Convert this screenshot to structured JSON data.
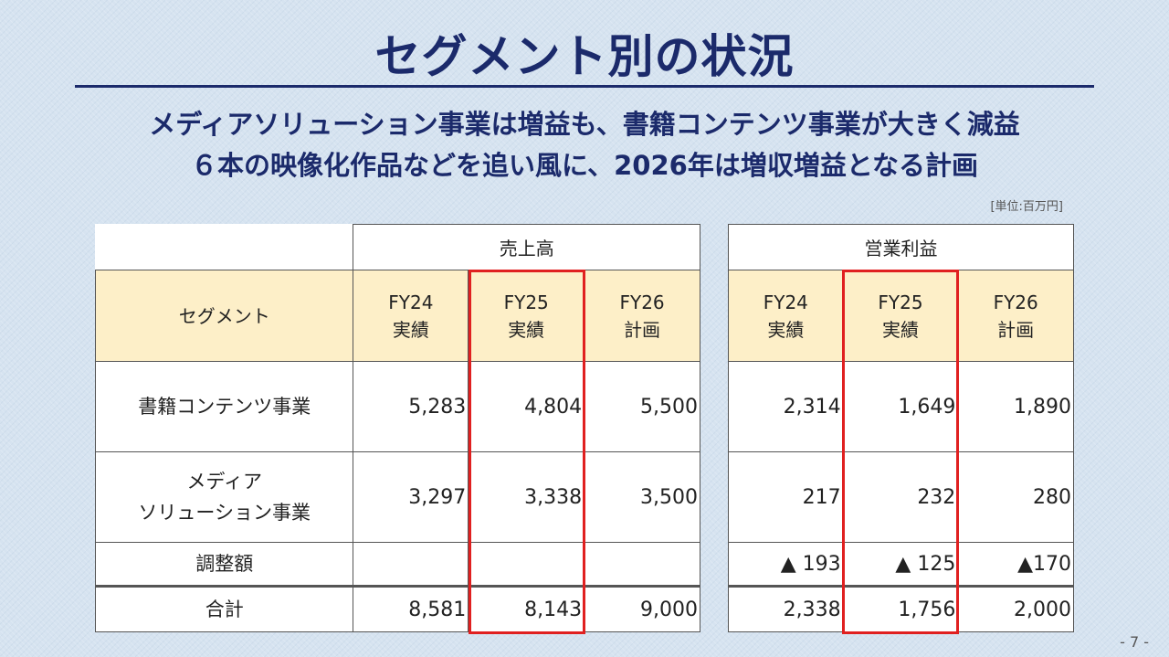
{
  "title": "セグメント別の状況",
  "subtitles": [
    "メディアソリューション事業は増益も、書籍コンテンツ事業が大きく減益",
    "６本の映像化作品などを追い風に、2026年は増収増益となる計画"
  ],
  "unit_note": "[単位:百万円]",
  "table": {
    "segment_header": "セグメント",
    "sales_header": "売上高",
    "profit_header": "営業利益",
    "periods": [
      {
        "line1": "FY24",
        "line2": "実績"
      },
      {
        "line1": "FY25",
        "line2": "実績"
      },
      {
        "line1": "FY26",
        "line2": "計画"
      }
    ],
    "rows": [
      {
        "segment_lines": [
          "書籍コンテンツ事業"
        ],
        "sales": [
          "5,283",
          "4,804",
          "5,500"
        ],
        "profit": [
          "2,314",
          "1,649",
          "1,890"
        ]
      },
      {
        "segment_lines": [
          "メディア",
          "ソリューション事業"
        ],
        "sales": [
          "3,297",
          "3,338",
          "3,500"
        ],
        "profit": [
          "217",
          "232",
          "280"
        ]
      },
      {
        "segment_lines": [
          "調整額"
        ],
        "sales": [
          "",
          "",
          ""
        ],
        "profit": [
          "▲ 193",
          "▲ 125",
          "▲170"
        ]
      },
      {
        "segment_lines": [
          "合計"
        ],
        "sales": [
          "8,581",
          "8,143",
          "9,000"
        ],
        "profit": [
          "2,338",
          "1,756",
          "2,000"
        ]
      }
    ]
  },
  "highlight_color": "#e02020",
  "page_number": "- 7 -"
}
